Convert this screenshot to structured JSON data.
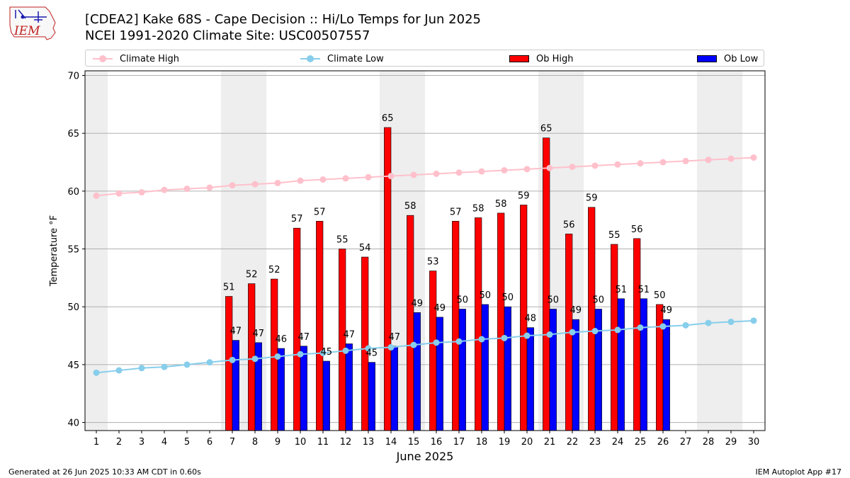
{
  "header": {
    "title_line1": "[CDEA2] Kake 68S - Cape Decision :: Hi/Lo Temps for Jun 2025",
    "title_line2": "NCEI 1991-2020 Climate Site: USC00507557"
  },
  "logo": {
    "text": "IEM"
  },
  "footer": {
    "left": "Generated at 26 Jun 2025 10:33 AM CDT in 0.60s",
    "right": "IEM Autoplot App #17"
  },
  "legend": {
    "climate_high": "Climate High",
    "climate_low": "Climate Low",
    "ob_high": "Ob High",
    "ob_low": "Ob Low"
  },
  "colors": {
    "climate_high": "#ffc0cb",
    "climate_low": "#87ceeb",
    "ob_high": "#ff0000",
    "ob_low": "#0000ff",
    "weekend_shade": "#eeeeee",
    "grid": "#b0b0b0"
  },
  "chart_data": {
    "type": "bar",
    "xlabel": "June 2025",
    "ylabel": "Temperature °F",
    "ylim": [
      39.3,
      70.4
    ],
    "yticks": [
      40,
      45,
      50,
      55,
      60,
      65,
      70
    ],
    "grid": "horizontal",
    "legend_position": "top",
    "x": [
      1,
      2,
      3,
      4,
      5,
      6,
      7,
      8,
      9,
      10,
      11,
      12,
      13,
      14,
      15,
      16,
      17,
      18,
      19,
      20,
      21,
      22,
      23,
      24,
      25,
      26,
      27,
      28,
      29,
      30
    ],
    "shaded_days": [
      1,
      7,
      8,
      14,
      15,
      21,
      22,
      28,
      29
    ],
    "series": [
      {
        "name": "Climate High",
        "kind": "line",
        "values": [
          59.6,
          59.8,
          59.9,
          60.1,
          60.2,
          60.3,
          60.5,
          60.6,
          60.7,
          60.9,
          61.0,
          61.1,
          61.2,
          61.3,
          61.4,
          61.5,
          61.6,
          61.7,
          61.8,
          61.9,
          62.0,
          62.1,
          62.2,
          62.3,
          62.4,
          62.5,
          62.6,
          62.7,
          62.8,
          62.9
        ]
      },
      {
        "name": "Climate Low",
        "kind": "line",
        "values": [
          44.3,
          44.5,
          44.7,
          44.8,
          45.0,
          45.2,
          45.4,
          45.5,
          45.7,
          45.9,
          46.0,
          46.2,
          46.4,
          46.5,
          46.7,
          46.9,
          47.0,
          47.2,
          47.3,
          47.5,
          47.6,
          47.8,
          47.9,
          48.0,
          48.2,
          48.3,
          48.4,
          48.6,
          48.7,
          48.8
        ]
      },
      {
        "name": "Ob High",
        "kind": "bar",
        "values": [
          null,
          null,
          null,
          null,
          null,
          null,
          50.9,
          52.0,
          52.4,
          56.8,
          57.4,
          55.0,
          54.3,
          65.5,
          57.9,
          53.1,
          57.4,
          57.7,
          58.1,
          58.8,
          64.6,
          56.3,
          58.6,
          55.4,
          55.9,
          50.2,
          null,
          null,
          null,
          null
        ],
        "labels": [
          null,
          null,
          null,
          null,
          null,
          null,
          "51",
          "52",
          "52",
          "57",
          "57",
          "55",
          "54",
          "65",
          "58",
          "53",
          "57",
          "58",
          "58",
          "59",
          "65",
          "56",
          "59",
          "55",
          "56",
          "50",
          null,
          null,
          null,
          null
        ]
      },
      {
        "name": "Ob Low",
        "kind": "bar",
        "values": [
          null,
          null,
          null,
          null,
          null,
          null,
          47.1,
          46.9,
          46.4,
          46.6,
          45.3,
          46.8,
          45.2,
          46.6,
          49.5,
          49.1,
          49.8,
          50.2,
          50.0,
          48.2,
          49.8,
          48.9,
          49.8,
          50.7,
          50.7,
          48.9,
          null,
          null,
          null,
          null
        ],
        "labels": [
          null,
          null,
          null,
          null,
          null,
          null,
          "47",
          "47",
          "46",
          "47",
          "45",
          "47",
          "45",
          "47",
          "49",
          "49",
          "50",
          "50",
          "50",
          "48",
          "50",
          "49",
          "50",
          "51",
          "51",
          "49",
          null,
          null,
          null,
          null
        ]
      }
    ]
  }
}
